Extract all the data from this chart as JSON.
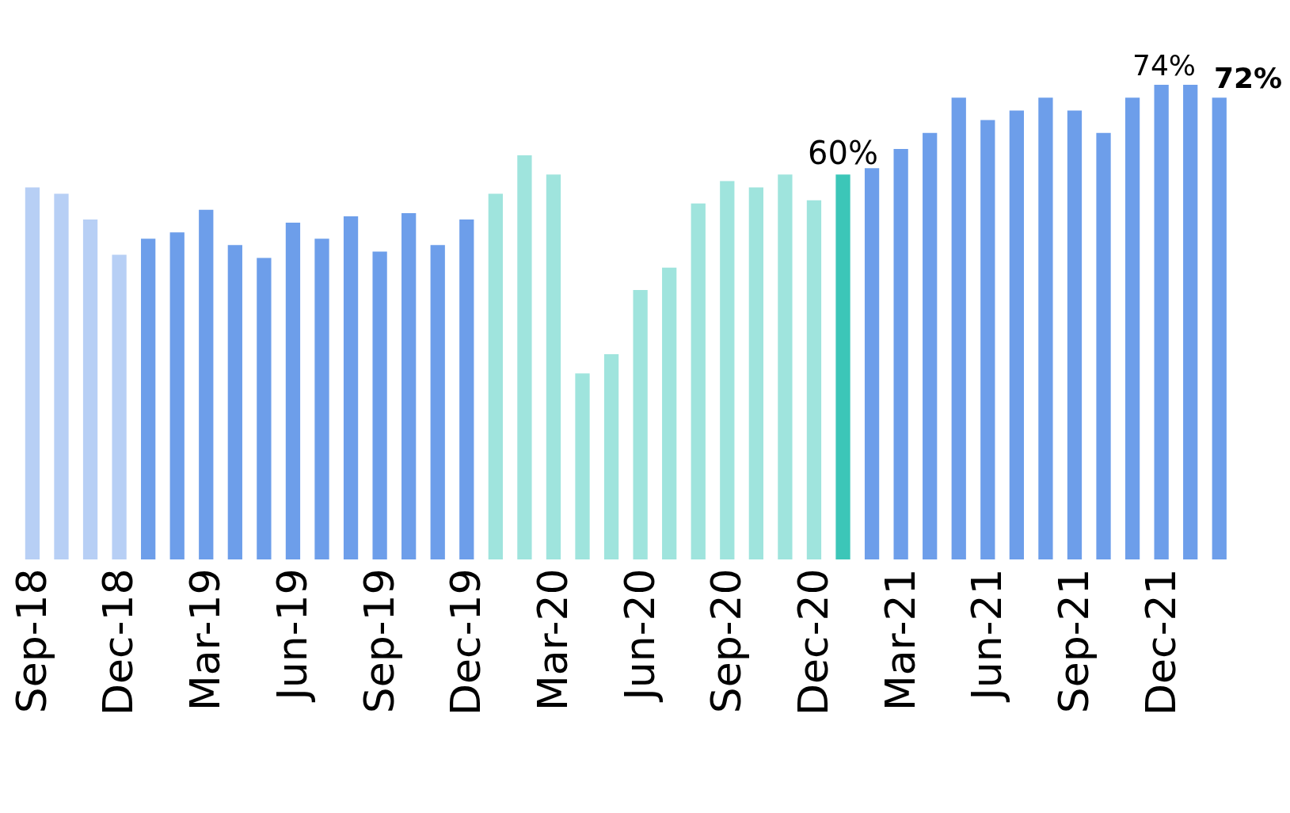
{
  "chart_data": {
    "type": "bar",
    "categories": [
      "Sep-18",
      null,
      null,
      "Dec-18",
      null,
      null,
      "Mar-19",
      null,
      null,
      "Jun-19",
      null,
      null,
      "Sep-19",
      null,
      null,
      "Dec-19",
      null,
      null,
      "Mar-20",
      null,
      null,
      "Jun-20",
      null,
      null,
      "Sep-20",
      null,
      null,
      "Dec-20",
      null,
      null,
      "Mar-21",
      null,
      null,
      "Jun-21",
      null,
      null,
      "Sep-21",
      null,
      null,
      "Dec-21",
      null,
      null
    ],
    "values": [
      58,
      57,
      53,
      47.5,
      50,
      51,
      54.5,
      49,
      47,
      52.5,
      50,
      53.5,
      48,
      54,
      49,
      53,
      57,
      63,
      60,
      29,
      32,
      42,
      45.5,
      55.5,
      59,
      58,
      60,
      56,
      60,
      61,
      64,
      66.5,
      72,
      68.5,
      70,
      72,
      70,
      66.5,
      72,
      74,
      74,
      72
    ],
    "colors": [
      "#b7cff5",
      "#b7cff5",
      "#b7cff5",
      "#b7cff5",
      "#6d9eea",
      "#6d9eea",
      "#6d9eea",
      "#6d9eea",
      "#6d9eea",
      "#6d9eea",
      "#6d9eea",
      "#6d9eea",
      "#6d9eea",
      "#6d9eea",
      "#6d9eea",
      "#6d9eea",
      "#9fe4dd",
      "#9fe4dd",
      "#9fe4dd",
      "#9fe4dd",
      "#9fe4dd",
      "#9fe4dd",
      "#9fe4dd",
      "#9fe4dd",
      "#9fe4dd",
      "#9fe4dd",
      "#9fe4dd",
      "#9fe4dd",
      "#3cc6b8",
      "#6d9eea",
      "#6d9eea",
      "#6d9eea",
      "#6d9eea",
      "#6d9eea",
      "#6d9eea",
      "#6d9eea",
      "#6d9eea",
      "#6d9eea",
      "#6d9eea",
      "#6d9eea",
      "#6d9eea",
      "#6d9eea"
    ],
    "value_labels": [
      null,
      null,
      null,
      null,
      null,
      null,
      null,
      null,
      null,
      null,
      null,
      null,
      null,
      null,
      null,
      null,
      null,
      null,
      null,
      null,
      null,
      null,
      null,
      null,
      null,
      null,
      null,
      null,
      "60%",
      null,
      null,
      null,
      null,
      null,
      null,
      null,
      null,
      null,
      null,
      null,
      "74%",
      "72%"
    ],
    "legend": false
  }
}
